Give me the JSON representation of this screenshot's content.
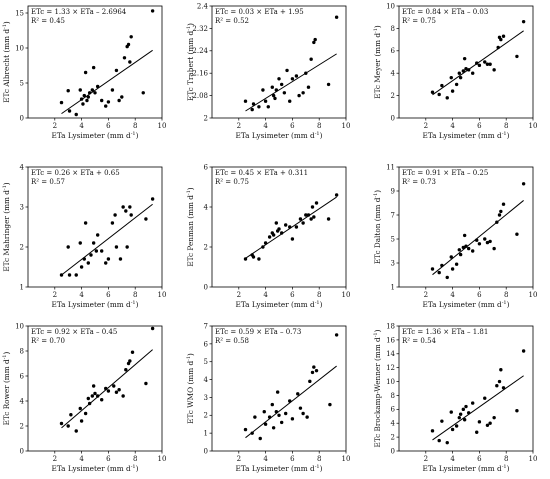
{
  "x_range": [
    0,
    10
  ],
  "x_ticks": [
    2,
    4,
    6,
    8,
    10
  ],
  "x_unit_sup": "-1",
  "chart_data": [
    {
      "type": "scatter",
      "id": "albrecht",
      "ylabel": "ETc Albrecht (mm d",
      "xlabel": "ETa Lysimeter (mm d",
      "equation": "ETc = 1.33 × ETa – 2.6964",
      "r2": "R² = 0.45",
      "ylim": [
        0,
        16
      ],
      "yticks": [
        0,
        5,
        10,
        15
      ],
      "fit": {
        "slope": 1.33,
        "intercept": -2.6964
      },
      "x": [
        2.5,
        3.0,
        3.1,
        3.6,
        3.9,
        4.0,
        4.1,
        4.2,
        4.3,
        4.4,
        4.5,
        4.6,
        4.8,
        4.9,
        5.0,
        5.2,
        5.5,
        5.8,
        6.0,
        6.3,
        6.6,
        6.8,
        7.0,
        7.2,
        7.4,
        7.5,
        7.6,
        7.7,
        8.6,
        9.3
      ],
      "y": [
        2.2,
        3.9,
        1.0,
        0.5,
        4.0,
        2.7,
        2.0,
        3.2,
        6.5,
        2.5,
        3.0,
        3.6,
        4.0,
        7.2,
        3.6,
        4.5,
        2.5,
        1.7,
        2.3,
        4.0,
        6.8,
        2.5,
        3.0,
        8.6,
        10.2,
        10.5,
        8.0,
        11.6,
        3.6,
        15.3
      ]
    },
    {
      "type": "scatter",
      "id": "trabert",
      "ylabel": "ETc Trabert (mm d",
      "xlabel": "ETa Lysimeter (mm d",
      "equation": "ETc = 0.03 × ETa + 1.95",
      "r2": "R² = 0.52",
      "ylim": [
        2,
        2.4
      ],
      "yticks": [
        2,
        2.08,
        2.16,
        2.24,
        2.32,
        2.4
      ],
      "fit": {
        "slope": 0.03,
        "intercept": 1.95
      },
      "x": [
        2.5,
        3.0,
        3.1,
        3.5,
        3.8,
        4.0,
        4.2,
        4.5,
        4.6,
        4.7,
        4.8,
        5.0,
        5.2,
        5.4,
        5.6,
        5.8,
        6.0,
        6.3,
        6.5,
        6.8,
        7.0,
        7.2,
        7.4,
        7.6,
        7.7,
        8.7,
        9.3
      ],
      "y": [
        2.06,
        2.03,
        2.05,
        2.04,
        2.1,
        2.06,
        2.04,
        2.11,
        2.08,
        2.07,
        2.1,
        2.14,
        2.12,
        2.09,
        2.17,
        2.06,
        2.14,
        2.15,
        2.08,
        2.09,
        2.16,
        2.11,
        2.21,
        2.27,
        2.28,
        2.12,
        2.36
      ]
    },
    {
      "type": "scatter",
      "id": "meyer",
      "ylabel": "ETc Meyer (mm d",
      "xlabel": "ETa Lysimeter (mm d",
      "equation": "ETc = 0.84 × ETa – 0.03",
      "r2": "R² = 0.75",
      "ylim": [
        0,
        10
      ],
      "yticks": [
        0,
        2,
        4,
        6,
        8,
        10
      ],
      "fit": {
        "slope": 0.84,
        "intercept": -0.03
      },
      "x": [
        2.5,
        3.0,
        3.2,
        3.6,
        3.9,
        4.0,
        4.3,
        4.5,
        4.6,
        4.8,
        4.9,
        5.0,
        5.2,
        5.5,
        5.8,
        6.0,
        6.4,
        6.6,
        6.8,
        7.1,
        7.4,
        7.5,
        7.6,
        7.8,
        8.8,
        9.3
      ],
      "y": [
        2.3,
        2.1,
        2.9,
        1.8,
        3.6,
        2.4,
        3.0,
        4.0,
        3.6,
        4.2,
        5.3,
        4.4,
        4.3,
        4.0,
        4.9,
        4.7,
        5.0,
        4.8,
        4.8,
        4.3,
        6.3,
        7.2,
        7.0,
        7.3,
        5.5,
        8.6
      ]
    },
    {
      "type": "scatter",
      "id": "mahringer",
      "ylabel": "ETc Mahringer (mm d",
      "xlabel": "ETa Lysimeter (mm d",
      "equation": "ETc = 0.26 × ETa + 0.65",
      "r2": "R² = 0.57",
      "ylim": [
        1,
        4
      ],
      "yticks": [
        1,
        2,
        3,
        4
      ],
      "fit": {
        "slope": 0.26,
        "intercept": 0.65
      },
      "x": [
        2.5,
        3.0,
        3.1,
        3.6,
        3.9,
        4.0,
        4.2,
        4.3,
        4.5,
        4.7,
        4.9,
        5.1,
        5.2,
        5.5,
        5.8,
        6.0,
        6.3,
        6.5,
        6.6,
        6.9,
        7.1,
        7.3,
        7.4,
        7.6,
        7.7,
        8.8,
        9.3
      ],
      "y": [
        1.3,
        2.0,
        1.3,
        1.3,
        2.1,
        1.5,
        1.7,
        2.6,
        1.6,
        1.8,
        2.1,
        1.9,
        2.3,
        1.9,
        1.6,
        1.7,
        2.6,
        2.8,
        2.0,
        1.7,
        3.0,
        2.9,
        2.0,
        3.0,
        2.8,
        2.7,
        3.2
      ]
    },
    {
      "type": "scatter",
      "id": "penman",
      "ylabel": "ETc Penman (mm d",
      "xlabel": "ETa Lysimeter (mm d",
      "equation": "ETc = 0.45 × ETa + 0.311",
      "r2": "R² = 0.75",
      "ylim": [
        0,
        6
      ],
      "yticks": [
        0,
        2,
        4,
        6
      ],
      "fit": {
        "slope": 0.45,
        "intercept": 0.311
      },
      "x": [
        2.5,
        3.0,
        3.1,
        3.5,
        3.8,
        4.0,
        4.3,
        4.5,
        4.6,
        4.8,
        4.9,
        5.0,
        5.2,
        5.5,
        5.8,
        6.0,
        6.3,
        6.6,
        6.8,
        7.0,
        7.2,
        7.4,
        7.5,
        7.6,
        7.8,
        8.7,
        9.3
      ],
      "y": [
        1.4,
        1.6,
        1.5,
        1.4,
        2.0,
        2.2,
        2.5,
        2.7,
        2.6,
        3.2,
        2.8,
        2.9,
        2.7,
        3.1,
        3.0,
        2.4,
        3.0,
        3.4,
        3.2,
        3.6,
        3.6,
        3.4,
        4.0,
        3.5,
        4.2,
        3.4,
        4.6
      ]
    },
    {
      "type": "scatter",
      "id": "dalton",
      "ylabel": "ETc Dalton (mm d",
      "xlabel": "ETa Lysimeter (mm d",
      "equation": "ETc = 0.91 × ETa – 0.25",
      "r2": "R² = 0.73",
      "ylim": [
        1,
        11
      ],
      "yticks": [
        1,
        3,
        5,
        7,
        9,
        11
      ],
      "fit": {
        "slope": 0.91,
        "intercept": -0.25
      },
      "x": [
        2.5,
        3.0,
        3.2,
        3.6,
        3.9,
        4.0,
        4.3,
        4.5,
        4.6,
        4.8,
        4.9,
        5.0,
        5.2,
        5.5,
        5.8,
        6.0,
        6.4,
        6.6,
        6.8,
        7.1,
        7.3,
        7.5,
        7.6,
        7.8,
        8.8,
        9.3
      ],
      "y": [
        2.5,
        2.2,
        2.8,
        1.8,
        3.5,
        2.5,
        2.9,
        4.1,
        3.7,
        4.3,
        5.3,
        4.4,
        4.2,
        4.0,
        4.9,
        4.6,
        5.0,
        4.7,
        4.8,
        4.2,
        6.4,
        7.0,
        7.3,
        7.9,
        5.4,
        9.6
      ]
    },
    {
      "type": "scatter",
      "id": "rower",
      "ylabel": "ETc Rower (mm d",
      "xlabel": "ETa Lysimeter (mm d",
      "equation": "ETc = 0.92 × ETa – 0.45",
      "r2": "R² = 0.70",
      "ylim": [
        0,
        10
      ],
      "yticks": [
        0,
        2,
        4,
        6,
        8,
        10
      ],
      "fit": {
        "slope": 0.92,
        "intercept": -0.45
      },
      "x": [
        2.5,
        3.0,
        3.2,
        3.6,
        3.9,
        4.0,
        4.3,
        4.5,
        4.6,
        4.8,
        4.9,
        5.0,
        5.2,
        5.5,
        5.8,
        6.0,
        6.4,
        6.6,
        6.8,
        7.1,
        7.3,
        7.5,
        7.6,
        7.8,
        8.8,
        9.3
      ],
      "y": [
        2.2,
        2.0,
        2.9,
        1.6,
        3.4,
        2.4,
        3.0,
        4.2,
        3.8,
        4.4,
        5.2,
        4.6,
        4.4,
        4.1,
        5.0,
        4.8,
        5.2,
        4.7,
        4.9,
        4.4,
        6.5,
        7.0,
        7.2,
        7.9,
        5.4,
        9.8
      ]
    },
    {
      "type": "scatter",
      "id": "wmo",
      "ylabel": "ETc WMO (mm d",
      "xlabel": "ETa Lysimeter (mm d",
      "equation": "ETc = 0.59 × ETa – 0.73",
      "r2": "R² = 0.58",
      "ylim": [
        0,
        7
      ],
      "yticks": [
        0,
        1,
        2,
        3,
        4,
        5,
        6,
        7
      ],
      "fit": {
        "slope": 0.59,
        "intercept": -0.73
      },
      "x": [
        2.5,
        3.0,
        3.2,
        3.6,
        3.9,
        4.0,
        4.3,
        4.5,
        4.6,
        4.8,
        4.9,
        5.0,
        5.2,
        5.5,
        5.8,
        6.0,
        6.4,
        6.6,
        6.8,
        7.1,
        7.3,
        7.5,
        7.6,
        7.8,
        8.8,
        9.3
      ],
      "y": [
        1.2,
        1.0,
        1.9,
        0.7,
        2.2,
        1.5,
        1.9,
        2.6,
        1.3,
        2.2,
        3.3,
        2.0,
        1.6,
        2.1,
        2.8,
        1.8,
        3.2,
        2.4,
        2.1,
        1.9,
        3.9,
        4.4,
        4.7,
        4.5,
        2.6,
        6.5
      ]
    },
    {
      "type": "scatter",
      "id": "brockamp-wenner",
      "ylabel": "ETc Brockamp-Wenner (mm d",
      "xlabel": "ETa Lysimeter (mm d",
      "equation": "ETc = 1.36 × ETa – 1.81",
      "r2": "R² = 0.54",
      "ylim": [
        0,
        18
      ],
      "yticks": [
        0,
        2,
        4,
        6,
        8,
        10,
        12,
        14,
        16,
        18
      ],
      "fit": {
        "slope": 1.36,
        "intercept": -1.81
      },
      "x": [
        2.5,
        3.0,
        3.2,
        3.6,
        3.9,
        4.0,
        4.3,
        4.5,
        4.6,
        4.8,
        4.9,
        5.0,
        5.2,
        5.5,
        5.8,
        6.0,
        6.4,
        6.6,
        6.8,
        7.1,
        7.3,
        7.5,
        7.6,
        7.8,
        8.8,
        9.3
      ],
      "y": [
        2.9,
        1.5,
        4.3,
        1.2,
        5.6,
        3.1,
        3.6,
        4.8,
        5.3,
        6.0,
        4.5,
        6.4,
        5.5,
        6.9,
        2.7,
        4.2,
        7.6,
        3.7,
        4.0,
        4.8,
        9.4,
        10.0,
        11.7,
        9.1,
        5.8,
        14.4
      ]
    }
  ]
}
